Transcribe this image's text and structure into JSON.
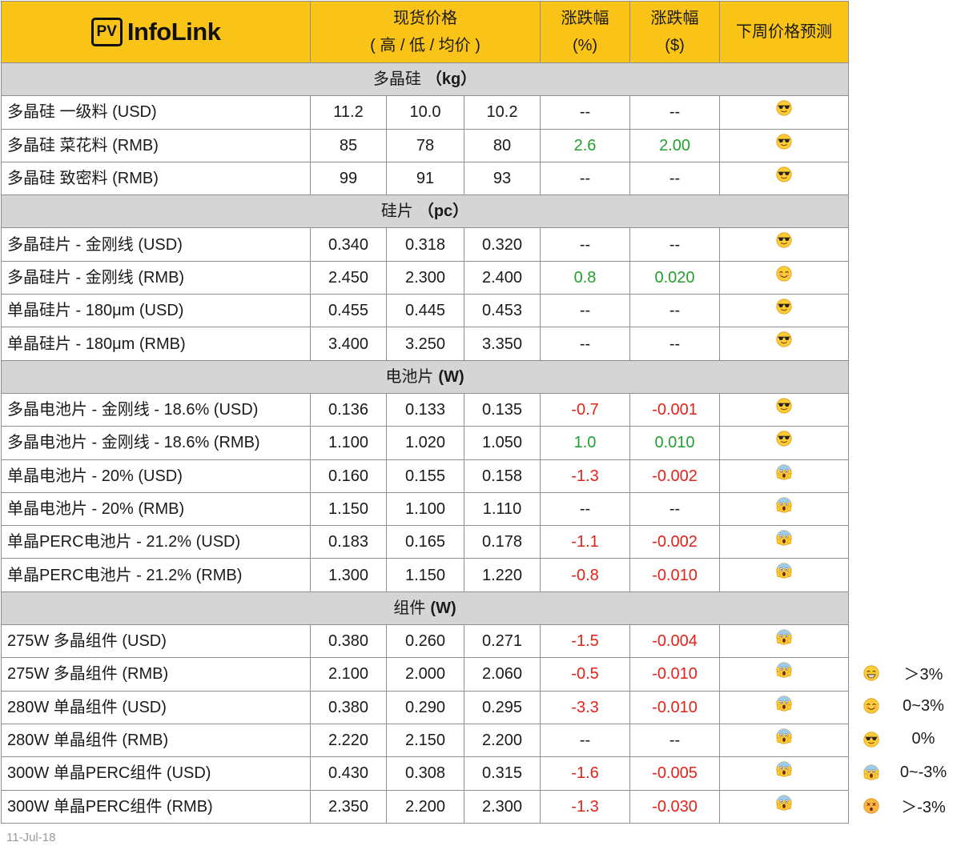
{
  "header": {
    "logo": {
      "badge": "PV",
      "name": "InfoLink"
    },
    "price_title": "现货价格",
    "price_subtitle": "( 高 / 低 / 均价 )",
    "change_pct_title": "涨跌幅",
    "change_pct_unit": "(%)",
    "change_abs_title": "涨跌幅",
    "change_abs_unit": "($)",
    "forecast_title": "下周价格预测"
  },
  "sections": [
    {
      "name": "多晶硅",
      "unit": "（kg）",
      "rows": [
        {
          "product": "多晶硅 一级料 (USD)",
          "high": "11.2",
          "low": "10.0",
          "avg": "10.2",
          "change_pct": "--",
          "change_abs": "--",
          "trend": "flat",
          "forecast_icon": "sunglasses-face"
        },
        {
          "product": "多晶硅 菜花料 (RMB)",
          "high": "85",
          "low": "78",
          "avg": "80",
          "change_pct": "2.6",
          "change_abs": "2.00",
          "trend": "up",
          "forecast_icon": "sunglasses-face"
        },
        {
          "product": "多晶硅 致密料 (RMB)",
          "high": "99",
          "low": "91",
          "avg": "93",
          "change_pct": "--",
          "change_abs": "--",
          "trend": "flat",
          "forecast_icon": "sunglasses-face"
        }
      ]
    },
    {
      "name": "硅片",
      "unit": "（pc）",
      "rows": [
        {
          "product": "多晶硅片 - 金刚线 (USD)",
          "high": "0.340",
          "low": "0.318",
          "avg": "0.320",
          "change_pct": "--",
          "change_abs": "--",
          "trend": "flat",
          "forecast_icon": "sunglasses-face"
        },
        {
          "product": "多晶硅片 - 金刚线 (RMB)",
          "high": "2.450",
          "low": "2.300",
          "avg": "2.400",
          "change_pct": "0.8",
          "change_abs": "0.020",
          "trend": "up",
          "forecast_icon": "smiling-face"
        },
        {
          "product": "单晶硅片 - 180μm (USD)",
          "high": "0.455",
          "low": "0.445",
          "avg": "0.453",
          "change_pct": "--",
          "change_abs": "--",
          "trend": "flat",
          "forecast_icon": "sunglasses-face"
        },
        {
          "product": "单晶硅片 - 180μm (RMB)",
          "high": "3.400",
          "low": "3.250",
          "avg": "3.350",
          "change_pct": "--",
          "change_abs": "--",
          "trend": "flat",
          "forecast_icon": "sunglasses-face"
        }
      ]
    },
    {
      "name": "电池片",
      "unit": "(W)",
      "rows": [
        {
          "product": "多晶电池片 - 金刚线 - 18.6% (USD)",
          "high": "0.136",
          "low": "0.133",
          "avg": "0.135",
          "change_pct": "-0.7",
          "change_abs": "-0.001",
          "trend": "down",
          "forecast_icon": "sunglasses-face"
        },
        {
          "product": "多晶电池片 - 金刚线 - 18.6% (RMB)",
          "high": "1.100",
          "low": "1.020",
          "avg": "1.050",
          "change_pct": "1.0",
          "change_abs": "0.010",
          "trend": "up",
          "forecast_icon": "sunglasses-face"
        },
        {
          "product": "单晶电池片 - 20% (USD)",
          "high": "0.160",
          "low": "0.155",
          "avg": "0.158",
          "change_pct": "-1.3",
          "change_abs": "-0.002",
          "trend": "down",
          "forecast_icon": "screaming-face"
        },
        {
          "product": "单晶电池片 - 20% (RMB)",
          "high": "1.150",
          "low": "1.100",
          "avg": "1.110",
          "change_pct": "--",
          "change_abs": "--",
          "trend": "flat",
          "forecast_icon": "screaming-face"
        },
        {
          "product": "单晶PERC电池片 - 21.2% (USD)",
          "high": "0.183",
          "low": "0.165",
          "avg": "0.178",
          "change_pct": "-1.1",
          "change_abs": "-0.002",
          "trend": "down",
          "forecast_icon": "screaming-face"
        },
        {
          "product": "单晶PERC电池片 - 21.2% (RMB)",
          "high": "1.300",
          "low": "1.150",
          "avg": "1.220",
          "change_pct": "-0.8",
          "change_abs": "-0.010",
          "trend": "down",
          "forecast_icon": "screaming-face"
        }
      ]
    },
    {
      "name": "组件",
      "unit": "(W)",
      "rows": [
        {
          "product": "275W 多晶组件 (USD)",
          "high": "0.380",
          "low": "0.260",
          "avg": "0.271",
          "change_pct": "-1.5",
          "change_abs": "-0.004",
          "trend": "down",
          "forecast_icon": "screaming-face"
        },
        {
          "product": "275W 多晶组件 (RMB)",
          "high": "2.100",
          "low": "2.000",
          "avg": "2.060",
          "change_pct": "-0.5",
          "change_abs": "-0.010",
          "trend": "down",
          "forecast_icon": "screaming-face"
        },
        {
          "product": "280W 单晶组件 (USD)",
          "high": "0.380",
          "low": "0.290",
          "avg": "0.295",
          "change_pct": "-3.3",
          "change_abs": "-0.010",
          "trend": "down",
          "forecast_icon": "screaming-face"
        },
        {
          "product": "280W 单晶组件 (RMB)",
          "high": "2.220",
          "low": "2.150",
          "avg": "2.200",
          "change_pct": "--",
          "change_abs": "--",
          "trend": "flat",
          "forecast_icon": "screaming-face"
        },
        {
          "product": "300W 单晶PERC组件 (USD)",
          "high": "0.430",
          "low": "0.308",
          "avg": "0.315",
          "change_pct": "-1.6",
          "change_abs": "-0.005",
          "trend": "down",
          "forecast_icon": "screaming-face"
        },
        {
          "product": "300W 单晶PERC组件 (RMB)",
          "high": "2.350",
          "low": "2.200",
          "avg": "2.300",
          "change_pct": "-1.3",
          "change_abs": "-0.030",
          "trend": "down",
          "forecast_icon": "screaming-face"
        }
      ]
    }
  ],
  "legend": [
    {
      "icon": "grinning-face",
      "label": "＞3%"
    },
    {
      "icon": "smiling-face",
      "label": "0~3%"
    },
    {
      "icon": "sunglasses-face",
      "label": "0%"
    },
    {
      "icon": "screaming-face",
      "label": "0~-3%"
    },
    {
      "icon": "dizzy-face",
      "label": "＞-3%"
    }
  ],
  "date": "11-Jul-18",
  "colors": {
    "header_bg": "#F9C417",
    "section_bg": "#D5D5D5",
    "border": "#8E8E8E",
    "date_text": "#9B9B9B",
    "trend": {
      "up": "#22A12E",
      "down": "#E2231A",
      "flat": "#1A1A1A"
    }
  }
}
